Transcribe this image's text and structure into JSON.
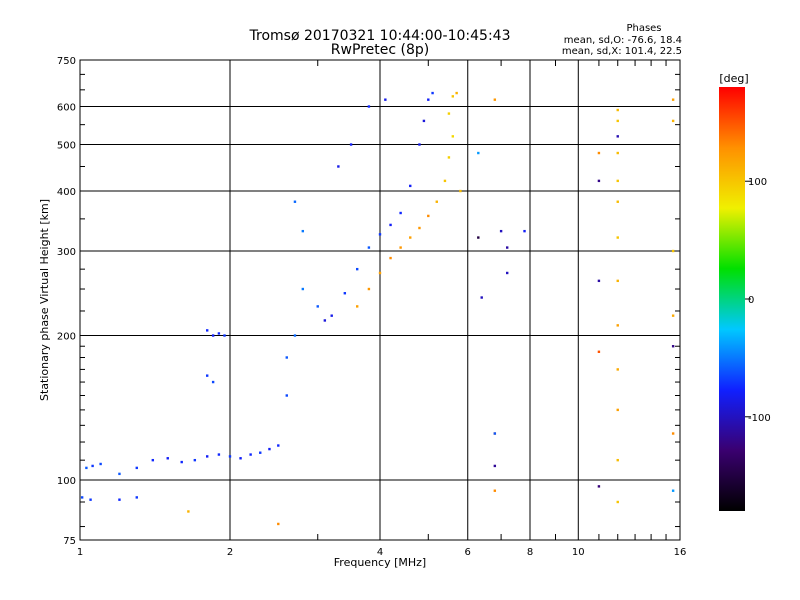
{
  "header": {
    "title_line1": "Tromsø 20170321 10:44:00-10:45:43",
    "title_line2": "RwPretec (8p)",
    "stats_title": "Phases",
    "stats_line1": "mean, sd,O: -76.6, 18.4",
    "stats_line2": "mean, sd,X: 101.4, 22.5"
  },
  "colorbar": {
    "label": "[deg]",
    "ticks": [
      {
        "value": 100,
        "label": "100"
      },
      {
        "value": 0,
        "label": "0"
      },
      {
        "value": -100,
        "label": "-100"
      }
    ],
    "range": [
      -180,
      180
    ],
    "colors": [
      "#000000",
      "#3a0070",
      "#1020ff",
      "#00c8ff",
      "#00e000",
      "#f0f000",
      "#ff9000",
      "#ff0000"
    ]
  },
  "chart_data": {
    "type": "scatter",
    "title": "Tromsø 20170321 10:44:00-10:45:43",
    "subtitle": "RwPretec (8p)",
    "xlabel": "Frequency [MHz]",
    "ylabel": "Stationary phase Virtual Height [km]",
    "xscale": "log",
    "yscale": "log",
    "xlim": [
      1,
      16
    ],
    "ylim": [
      75,
      750
    ],
    "grid": true,
    "x_ticks": [
      1,
      2,
      4,
      6,
      8,
      10,
      16
    ],
    "x_tick_labels": [
      "1",
      "2",
      "4",
      "6",
      "8",
      "10",
      "16"
    ],
    "y_ticks": [
      75,
      100,
      200,
      300,
      400,
      500,
      600,
      750
    ],
    "y_tick_labels": [
      "75",
      "100",
      "200",
      "300",
      "400",
      "500",
      "600",
      "750"
    ],
    "color_by": "phase [deg]",
    "series": [
      {
        "points": [
          [
            1.03,
            106,
            -60
          ],
          [
            1.06,
            107,
            -70
          ],
          [
            1.1,
            108,
            -65
          ],
          [
            1.2,
            103,
            -60
          ],
          [
            1.3,
            106,
            -70
          ],
          [
            1.4,
            110,
            -75
          ],
          [
            1.5,
            111,
            -80
          ],
          [
            1.6,
            109,
            -75
          ],
          [
            1.7,
            110,
            -70
          ],
          [
            1.8,
            112,
            -80
          ],
          [
            1.9,
            113,
            -75
          ],
          [
            2.0,
            112,
            -70
          ],
          [
            2.1,
            111,
            -80
          ],
          [
            2.2,
            113,
            -75
          ],
          [
            2.3,
            114,
            -70
          ],
          [
            2.4,
            116,
            -80
          ],
          [
            2.5,
            118,
            -75
          ],
          [
            2.6,
            150,
            -65
          ],
          [
            2.7,
            200,
            -55
          ],
          [
            2.8,
            250,
            -50
          ],
          [
            3.0,
            230,
            -60
          ],
          [
            3.1,
            215,
            -90
          ],
          [
            3.2,
            220,
            -85
          ],
          [
            3.4,
            245,
            -70
          ],
          [
            3.6,
            275,
            -65
          ],
          [
            3.8,
            305,
            -60
          ],
          [
            4.0,
            325,
            -70
          ],
          [
            4.2,
            340,
            -80
          ],
          [
            4.4,
            360,
            -75
          ],
          [
            4.6,
            410,
            -80
          ],
          [
            4.8,
            500,
            -85
          ],
          [
            4.9,
            560,
            -90
          ],
          [
            5.0,
            620,
            -80
          ],
          [
            5.1,
            640,
            -70
          ],
          [
            1.01,
            92,
            -65
          ],
          [
            1.05,
            91,
            -70
          ],
          [
            1.2,
            91,
            -75
          ],
          [
            1.3,
            92,
            -70
          ],
          [
            2.6,
            180,
            -60
          ],
          [
            2.7,
            380,
            -55
          ],
          [
            2.8,
            330,
            -50
          ],
          [
            1.8,
            205,
            -75
          ],
          [
            1.85,
            200,
            -80
          ],
          [
            1.9,
            202,
            -75
          ],
          [
            1.95,
            200,
            -70
          ],
          [
            1.8,
            165,
            -70
          ],
          [
            1.85,
            160,
            -65
          ],
          [
            3.3,
            450,
            -85
          ],
          [
            3.5,
            500,
            -80
          ],
          [
            3.8,
            600,
            -75
          ],
          [
            4.1,
            620,
            -85
          ]
        ]
      },
      {
        "points": [
          [
            3.6,
            230,
            120
          ],
          [
            3.8,
            250,
            125
          ],
          [
            4.0,
            270,
            120
          ],
          [
            4.2,
            290,
            130
          ],
          [
            4.4,
            305,
            125
          ],
          [
            4.6,
            320,
            120
          ],
          [
            4.8,
            335,
            125
          ],
          [
            5.0,
            355,
            130
          ],
          [
            5.2,
            380,
            110
          ],
          [
            5.4,
            420,
            100
          ],
          [
            5.5,
            470,
            95
          ],
          [
            5.6,
            520,
            90
          ],
          [
            5.5,
            580,
            95
          ],
          [
            5.6,
            630,
            100
          ],
          [
            5.7,
            640,
            110
          ],
          [
            5.8,
            400,
            105
          ],
          [
            6.8,
            95,
            130
          ],
          [
            6.8,
            125,
            140
          ],
          [
            6.8,
            620,
            125
          ],
          [
            2.5,
            81,
            130
          ],
          [
            1.65,
            86,
            110
          ],
          [
            11.0,
            480,
            130
          ],
          [
            11.0,
            185,
            150
          ],
          [
            12.0,
            590,
            105
          ],
          [
            12.0,
            560,
            100
          ],
          [
            12.0,
            480,
            105
          ],
          [
            12.0,
            420,
            100
          ],
          [
            12.0,
            380,
            105
          ],
          [
            12.0,
            320,
            100
          ],
          [
            12.0,
            260,
            110
          ],
          [
            12.0,
            210,
            120
          ],
          [
            12.0,
            170,
            115
          ],
          [
            12.0,
            140,
            120
          ],
          [
            12.0,
            110,
            105
          ],
          [
            12.0,
            90,
            100
          ],
          [
            15.5,
            620,
            120
          ],
          [
            15.5,
            560,
            110
          ],
          [
            15.5,
            300,
            100
          ],
          [
            15.5,
            220,
            115
          ],
          [
            15.5,
            125,
            130
          ]
        ]
      },
      {
        "points": [
          [
            6.3,
            480,
            -40
          ],
          [
            6.3,
            320,
            -150
          ],
          [
            7.0,
            330,
            -100
          ],
          [
            7.2,
            305,
            -110
          ],
          [
            7.2,
            270,
            -100
          ],
          [
            6.4,
            240,
            -100
          ],
          [
            6.8,
            107,
            -115
          ],
          [
            6.8,
            125,
            -60
          ],
          [
            11.0,
            97,
            -125
          ],
          [
            11.0,
            260,
            -110
          ],
          [
            11.0,
            420,
            -120
          ],
          [
            12.0,
            520,
            -105
          ],
          [
            15.5,
            190,
            -120
          ],
          [
            15.5,
            95,
            -40
          ],
          [
            7.8,
            330,
            -80
          ]
        ]
      }
    ]
  }
}
